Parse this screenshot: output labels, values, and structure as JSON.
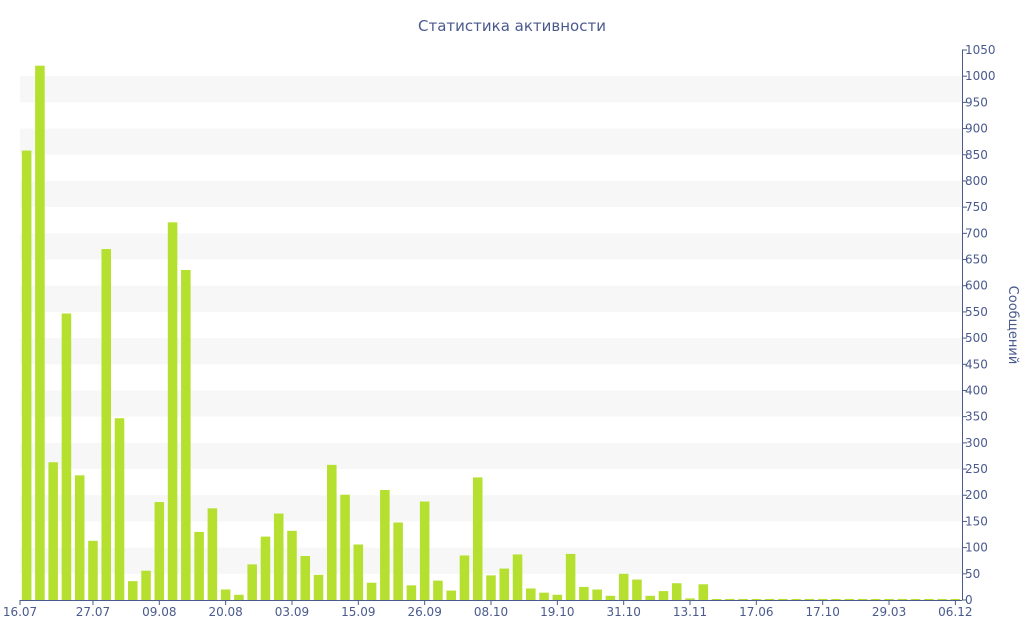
{
  "chart_data": {
    "type": "bar",
    "title": "Статистика активности",
    "xlabel": "",
    "ylabel": "Сообщений",
    "ylim": [
      0,
      1050
    ],
    "y_ticks": [
      0,
      50,
      100,
      150,
      200,
      250,
      300,
      350,
      400,
      450,
      500,
      550,
      600,
      650,
      700,
      750,
      800,
      850,
      900,
      950,
      1000,
      1050
    ],
    "y_axis_side": "right",
    "grid": "horizontal alternating bands",
    "legend": "none",
    "x_tick_labels": [
      {
        "label": "16.07",
        "bar_index": 0
      },
      {
        "label": "27.07",
        "bar_index": 5
      },
      {
        "label": "09.08",
        "bar_index": 10
      },
      {
        "label": "20.08",
        "bar_index": 15
      },
      {
        "label": "03.09",
        "bar_index": 20
      },
      {
        "label": "15.09",
        "bar_index": 25
      },
      {
        "label": "26.09",
        "bar_index": 30
      },
      {
        "label": "08.10",
        "bar_index": 35
      },
      {
        "label": "19.10",
        "bar_index": 40
      },
      {
        "label": "31.10",
        "bar_index": 45
      },
      {
        "label": "13.11",
        "bar_index": 50
      },
      {
        "label": "17.06",
        "bar_index": 55
      },
      {
        "label": "17.10",
        "bar_index": 60
      },
      {
        "label": "29.03",
        "bar_index": 65
      },
      {
        "label": "06.12",
        "bar_index": 70
      }
    ],
    "values": [
      858,
      1020,
      263,
      547,
      238,
      113,
      670,
      347,
      36,
      56,
      187,
      721,
      630,
      130,
      175,
      20,
      10,
      68,
      121,
      165,
      132,
      84,
      48,
      258,
      201,
      106,
      33,
      210,
      148,
      28,
      188,
      37,
      18,
      85,
      234,
      47,
      60,
      87,
      22,
      14,
      10,
      88,
      25,
      20,
      8,
      50,
      39,
      8,
      17,
      32,
      3,
      30,
      2,
      2,
      2,
      2,
      2,
      2,
      2,
      2,
      2,
      2,
      2,
      2,
      2,
      2,
      2,
      2,
      2,
      2,
      2
    ],
    "colors": {
      "bar": "#b5e02f",
      "band": "#f7f7f7",
      "axis": "#4a5a8c",
      "title": "#4a5a8c"
    }
  }
}
